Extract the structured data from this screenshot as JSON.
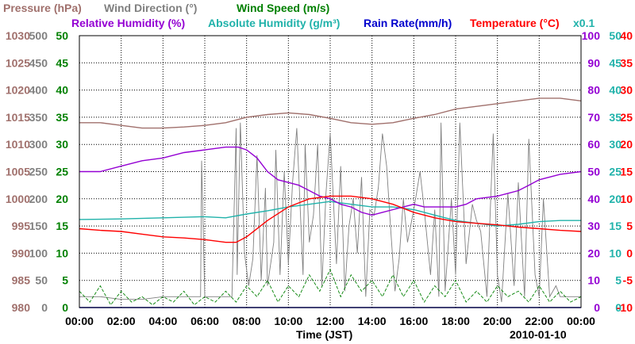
{
  "chart_data": {
    "type": "line",
    "date": "2010-01-10",
    "xlabel": "Time (JST)",
    "x_ticks": [
      "00:00",
      "02:00",
      "04:00",
      "06:00",
      "08:00",
      "10:00",
      "12:00",
      "14:00",
      "16:00",
      "18:00",
      "20:00",
      "22:00",
      "00:00"
    ],
    "xlim": [
      0,
      24
    ],
    "grid": true,
    "axes": {
      "pressure": {
        "label": "Pressure (hPa)",
        "color": "#a0706c",
        "range": [
          980,
          1030
        ],
        "ticks": [
          "980",
          "985",
          "990",
          "995",
          "1000",
          "1005",
          "1010",
          "1015",
          "1020",
          "1025",
          "1030"
        ]
      },
      "wind_direction": {
        "label": "Wind Direction (°)",
        "color": "#808080",
        "range": [
          0,
          500
        ],
        "ticks": [
          "0",
          "50",
          "100",
          "150",
          "200",
          "250",
          "300",
          "350",
          "400",
          "450",
          "500"
        ]
      },
      "wind_speed": {
        "label": "Wind Speed (m/s)",
        "color": "#008000",
        "range": [
          0,
          50
        ],
        "ticks": [
          "0",
          "5",
          "10",
          "15",
          "20",
          "25",
          "30",
          "35",
          "40",
          "45",
          "50"
        ]
      },
      "relative_humidity": {
        "label": "Relative Humidity (%)",
        "color": "#9400d3",
        "range": [
          0,
          100
        ],
        "ticks": [
          "0",
          "10",
          "20",
          "30",
          "40",
          "50",
          "60",
          "70",
          "80",
          "90",
          "100"
        ]
      },
      "absolute_humidity": {
        "label": "Absolute Humidity (g/m³)",
        "label_note": "x0.1",
        "color": "#20b2aa",
        "range": [
          0,
          50
        ],
        "ticks": [
          "0",
          "5",
          "10",
          "15",
          "20",
          "25",
          "30",
          "35",
          "40",
          "45",
          "50"
        ]
      },
      "rain_rate": {
        "label": "Rain Rate(mm/h)",
        "color": "#0000cd",
        "range": [
          0,
          50
        ],
        "ticks": [
          "0",
          "5",
          "10",
          "15",
          "20",
          "25",
          "30",
          "35",
          "40",
          "45",
          "50"
        ]
      },
      "temperature": {
        "label": "Temperature (°C)",
        "color": "#ff0000",
        "range": [
          -10,
          40
        ],
        "ticks": [
          "-10",
          "-5",
          "0",
          "5",
          "10",
          "15",
          "20",
          "25",
          "30",
          "35",
          "40"
        ]
      }
    },
    "series": [
      {
        "name": "Pressure (hPa)",
        "axis": "pressure",
        "color": "#a0706c",
        "x": [
          0,
          1,
          2,
          3,
          4,
          5,
          6,
          7,
          8,
          9,
          10,
          11,
          12,
          13,
          14,
          15,
          16,
          17,
          18,
          19,
          20,
          21,
          22,
          23,
          24
        ],
        "y": [
          1014.0,
          1014.0,
          1013.5,
          1013.0,
          1013.0,
          1013.2,
          1013.5,
          1014.0,
          1015.0,
          1015.5,
          1015.8,
          1015.5,
          1014.8,
          1014.0,
          1013.7,
          1014.0,
          1014.8,
          1015.5,
          1016.5,
          1017.0,
          1017.5,
          1018.0,
          1018.5,
          1018.5,
          1018.0
        ]
      },
      {
        "name": "Relative Humidity (%)",
        "axis": "relative_humidity",
        "color": "#9400d3",
        "x": [
          0,
          1,
          2,
          3,
          4,
          5,
          6,
          7,
          7.6,
          8,
          8.5,
          9,
          9.5,
          10,
          10.5,
          11,
          11.5,
          12,
          12.5,
          13,
          13.5,
          14,
          14.5,
          15,
          15.5,
          16,
          16.5,
          17,
          18,
          18.5,
          19,
          20,
          21,
          21.5,
          22,
          23,
          24
        ],
        "y": [
          50,
          50,
          52,
          54,
          55,
          57,
          58,
          59,
          59,
          58,
          55,
          50,
          47,
          46,
          45,
          43,
          41,
          40,
          38,
          37,
          35,
          34,
          35,
          36,
          37,
          38,
          37,
          37,
          37,
          38,
          40,
          41,
          43,
          45,
          47,
          49,
          50
        ]
      },
      {
        "name": "Absolute Humidity (g/m³)",
        "axis": "absolute_humidity",
        "color": "#20b2aa",
        "x": [
          0,
          2,
          4,
          6,
          7,
          8,
          9,
          10,
          11,
          12,
          13,
          14,
          15,
          16,
          17,
          18,
          19,
          20,
          21,
          22,
          23,
          24
        ],
        "y": [
          16.2,
          16.3,
          16.5,
          16.7,
          16.5,
          17.2,
          17.8,
          18.5,
          19.0,
          19.5,
          19.0,
          18.5,
          18.5,
          18.0,
          17.0,
          16.0,
          15.5,
          15.0,
          15.3,
          15.8,
          16.0,
          16.0
        ]
      },
      {
        "name": "Rain Rate(mm/h)",
        "axis": "rain_rate",
        "color": "#0000cd",
        "x": [
          0,
          24
        ],
        "y": [
          0,
          0
        ]
      },
      {
        "name": "Temperature (°C)",
        "axis": "temperature",
        "color": "#ff0000",
        "x": [
          0,
          1,
          2,
          3,
          4,
          5,
          6,
          7,
          7.5,
          8,
          9,
          10,
          11,
          12,
          13,
          14,
          15,
          16,
          17,
          18,
          19,
          20,
          21,
          22,
          23,
          24
        ],
        "y": [
          4.5,
          4.2,
          4.0,
          3.5,
          3.0,
          2.8,
          2.5,
          2.0,
          2.0,
          3.0,
          6.0,
          8.5,
          10.0,
          10.5,
          10.5,
          10.0,
          9.0,
          7.5,
          6.5,
          5.8,
          5.5,
          5.2,
          4.8,
          4.5,
          4.2,
          4.0
        ]
      },
      {
        "name": "Wind Direction (°)",
        "axis": "wind_direction",
        "color": "#808080",
        "x": [
          0,
          1,
          2,
          3,
          4,
          5,
          5.8,
          5.85,
          6.0,
          6.2,
          7.3,
          7.5,
          7.55,
          7.7,
          7.9,
          8.1,
          8.3,
          8.5,
          8.7,
          8.9,
          9.0,
          9.3,
          9.4,
          9.6,
          9.8,
          10.0,
          10.2,
          10.4,
          10.7,
          10.8,
          11.0,
          11.2,
          11.4,
          11.6,
          11.8,
          12.0,
          12.3,
          12.5,
          12.7,
          12.9,
          13.1,
          13.3,
          13.5,
          13.7,
          13.9,
          14.1,
          14.3,
          14.5,
          14.7,
          14.9,
          15.1,
          15.3,
          15.5,
          15.7,
          16.0,
          16.3,
          16.5,
          16.8,
          17.0,
          17.2,
          17.3,
          17.5,
          17.8,
          18.0,
          18.2,
          18.5,
          18.8,
          19.0,
          19.2,
          19.5,
          19.8,
          20.0,
          20.2,
          20.5,
          20.8,
          21.0,
          21.3,
          21.5,
          21.8,
          22.0,
          22.2,
          22.5,
          22.8,
          23.0,
          23.5,
          24
        ],
        "y": [
          20,
          20,
          15,
          15,
          20,
          20,
          20,
          270,
          20,
          20,
          20,
          330,
          60,
          340,
          100,
          40,
          90,
          280,
          50,
          220,
          40,
          120,
          290,
          60,
          250,
          80,
          230,
          330,
          60,
          300,
          120,
          170,
          300,
          40,
          210,
          320,
          80,
          260,
          30,
          150,
          200,
          100,
          240,
          20,
          180,
          170,
          220,
          320,
          260,
          140,
          30,
          90,
          200,
          120,
          180,
          250,
          180,
          60,
          180,
          20,
          340,
          30,
          200,
          60,
          340,
          80,
          190,
          160,
          140,
          20,
          320,
          60,
          10,
          210,
          40,
          230,
          20,
          310,
          60,
          20,
          200,
          20,
          40,
          20,
          20,
          20
        ]
      },
      {
        "name": "Wind Speed (m/s)",
        "axis": "wind_speed",
        "color": "#008000",
        "x": [
          0,
          0.5,
          1,
          1.5,
          2,
          2.5,
          3,
          3.5,
          4,
          4.5,
          5,
          5.5,
          6,
          6.5,
          7,
          7.5,
          8,
          8.5,
          9,
          9.5,
          10,
          10.5,
          11,
          11.5,
          12,
          12.5,
          13,
          13.5,
          14,
          14.5,
          15,
          15.5,
          16,
          16.5,
          17,
          17.5,
          18,
          18.5,
          19,
          19.5,
          20,
          20.5,
          21,
          21.5,
          22,
          22.5,
          23,
          23.5,
          24
        ],
        "y": [
          3,
          1,
          4,
          0.5,
          3,
          1,
          2,
          0.5,
          2,
          1,
          3,
          0.5,
          2,
          1,
          3,
          1,
          4,
          2,
          5,
          1,
          4,
          2,
          6,
          3,
          7,
          2,
          6,
          3,
          5,
          2,
          6,
          2,
          5,
          1,
          4,
          2,
          5,
          1,
          3,
          1,
          4,
          2,
          3,
          1,
          4,
          1,
          3,
          1,
          2
        ]
      }
    ]
  }
}
